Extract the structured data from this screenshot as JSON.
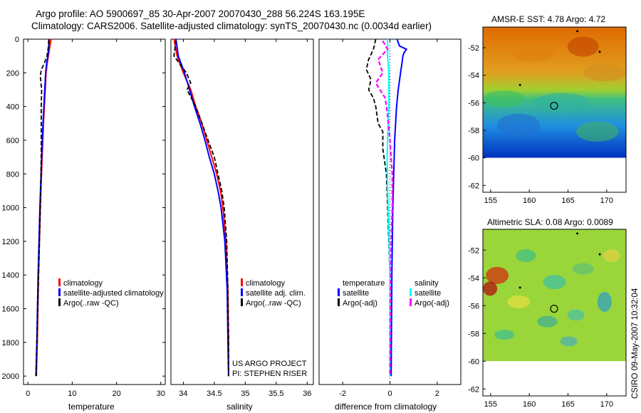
{
  "title": {
    "line1": "Argo profile: AO 5900697_85 30-Apr-2007 20070430_288 56.224S 163.195E",
    "line2": "Climatology: CARS2006. Satellite-adjusted climatology: synTS_20070430.nc (0.0034d earlier)"
  },
  "colors": {
    "climatology": "#ff0000",
    "satellite": "#0000ff",
    "argo": "#000000",
    "sat_diff_sal": "#00ffff",
    "argo_diff_sal": "#ff00ff"
  },
  "chart_data": [
    {
      "type": "line",
      "title": "",
      "xlabel": "temperature",
      "ylabel": "",
      "xlim": [
        -1,
        31
      ],
      "ylim": [
        2050,
        0
      ],
      "xticks": [
        0,
        10,
        20,
        30
      ],
      "yticks": [
        0,
        200,
        400,
        600,
        800,
        1000,
        1200,
        1400,
        1600,
        1800,
        2000
      ],
      "legend": [
        "climatology",
        "satellite-adjusted climatology",
        "Argo(..raw -QC)"
      ],
      "series": [
        {
          "name": "climatology",
          "depth": [
            0,
            50,
            100,
            150,
            200,
            300,
            400,
            500,
            700,
            1000,
            1400,
            1800,
            2000
          ],
          "values": [
            5.2,
            4.9,
            4.6,
            4.3,
            4.1,
            3.9,
            3.7,
            3.5,
            3.2,
            2.8,
            2.4,
            2.1,
            1.9
          ]
        },
        {
          "name": "satellite-adjusted climatology",
          "depth": [
            0,
            50,
            100,
            150,
            200,
            300,
            400,
            500,
            700,
            1000,
            1400,
            1800,
            2000
          ],
          "values": [
            4.8,
            4.7,
            4.5,
            4.2,
            4.0,
            3.8,
            3.6,
            3.4,
            3.1,
            2.7,
            2.3,
            2.0,
            1.8
          ]
        },
        {
          "name": "Argo(..raw -QC)",
          "depth": [
            5,
            50,
            100,
            150,
            180,
            220,
            300,
            400,
            500,
            700,
            1000,
            1400,
            1800,
            2000
          ],
          "values": [
            4.7,
            4.6,
            4.3,
            3.6,
            3.0,
            2.8,
            3.1,
            3.0,
            3.0,
            3.0,
            2.8,
            2.4,
            2.0,
            1.9
          ]
        }
      ]
    },
    {
      "type": "line",
      "title": "",
      "xlabel": "salinity",
      "ylabel": "",
      "xlim": [
        33.8,
        36.1
      ],
      "ylim": [
        2050,
        0
      ],
      "xticks": [
        34,
        34.5,
        35,
        35.5,
        36
      ],
      "yticks": [],
      "legend": [
        "climatology",
        "satellite adj. clim.",
        "Argo(..raw -QC)"
      ],
      "series": [
        {
          "name": "climatology",
          "depth": [
            0,
            100,
            200,
            300,
            400,
            500,
            600,
            700,
            800,
            900,
            1000,
            1200,
            1500,
            1800,
            2000
          ],
          "values": [
            33.85,
            33.9,
            34.0,
            34.12,
            34.2,
            34.3,
            34.38,
            34.46,
            34.54,
            34.6,
            34.64,
            34.69,
            34.72,
            34.73,
            34.73
          ]
        },
        {
          "name": "satellite adj. clim.",
          "depth": [
            0,
            100,
            200,
            300,
            400,
            500,
            600,
            700,
            800,
            900,
            1000,
            1200,
            1500,
            1800,
            2000
          ],
          "values": [
            33.88,
            33.92,
            34.02,
            34.1,
            34.18,
            34.27,
            34.35,
            34.42,
            34.5,
            34.56,
            34.61,
            34.67,
            34.71,
            34.72,
            34.73
          ]
        },
        {
          "name": "Argo(..raw -QC)",
          "depth": [
            5,
            100,
            150,
            200,
            260,
            300,
            400,
            500,
            600,
            700,
            800,
            900,
            1000,
            1200,
            1500,
            1800,
            2000
          ],
          "values": [
            33.88,
            33.85,
            33.95,
            34.05,
            34.12,
            34.06,
            34.2,
            34.3,
            34.4,
            34.5,
            34.56,
            34.62,
            34.66,
            34.7,
            34.72,
            34.73,
            34.73
          ]
        }
      ],
      "annotations": [
        "US ARGO PROJECT",
        "PI: STEPHEN RISER"
      ]
    },
    {
      "type": "line",
      "title": "",
      "xlabel": "difference from climatology",
      "ylabel": "",
      "xlim": [
        -3,
        3
      ],
      "ylim": [
        2050,
        0
      ],
      "xticks": [
        -2,
        0,
        2
      ],
      "yticks": [],
      "legend_temperature": [
        "temperature",
        "satellite",
        "Argo(-adj)"
      ],
      "legend_salinity": [
        "salinity",
        "satellite",
        "Argo(-adj)"
      ],
      "series": [
        {
          "name": "temperature satellite",
          "depth": [
            0,
            40,
            60,
            80,
            100,
            150,
            200,
            300,
            400,
            600,
            1000,
            1400,
            2000
          ],
          "values": [
            0.3,
            0.4,
            0.7,
            0.6,
            0.55,
            0.5,
            0.45,
            0.35,
            0.28,
            0.2,
            0.12,
            0.08,
            0.05
          ]
        },
        {
          "name": "temperature Argo(-adj)",
          "depth": [
            0,
            60,
            120,
            180,
            240,
            300,
            350,
            400,
            500,
            550,
            650,
            800,
            1000,
            1400,
            2000
          ],
          "values": [
            -0.6,
            -0.7,
            -0.9,
            -1.0,
            -0.8,
            -0.9,
            -0.7,
            -0.6,
            -0.5,
            -0.3,
            -0.3,
            -0.15,
            -0.1,
            0.0,
            0.0
          ]
        },
        {
          "name": "salinity satellite",
          "depth": [
            0,
            100,
            200,
            400,
            600,
            700,
            900,
            1100,
            1400,
            2000
          ],
          "values": [
            -0.1,
            -0.1,
            -0.05,
            -0.05,
            -0.1,
            -0.12,
            -0.1,
            -0.05,
            0.0,
            0.0
          ]
        },
        {
          "name": "salinity Argo(-adj)",
          "depth": [
            10,
            60,
            120,
            200,
            260,
            350,
            450,
            600,
            800,
            1000,
            1200,
            1500,
            2000
          ],
          "values": [
            -0.3,
            -0.1,
            -0.5,
            -0.3,
            -0.6,
            -0.2,
            -0.1,
            0.0,
            0.1,
            0.1,
            0.05,
            0.02,
            0.0
          ]
        }
      ]
    },
    {
      "type": "heatmap",
      "title": "AMSR-E SST: 4.78 Argo: 4.72",
      "xlim": [
        154,
        172.5
      ],
      "ylim": [
        -62.5,
        -50.5
      ],
      "xticks": [
        155,
        160,
        165,
        170
      ],
      "yticks": [
        -52,
        -54,
        -56,
        -58,
        -60,
        -62
      ],
      "profile_location": [
        163.2,
        -56.22
      ]
    },
    {
      "type": "heatmap",
      "title": "Altimetric SLA: 0.08 Argo: 0.0089",
      "xlim": [
        154,
        172.5
      ],
      "ylim": [
        -62.5,
        -50.5
      ],
      "xticks": [
        155,
        160,
        165,
        170
      ],
      "yticks": [
        -52,
        -54,
        -56,
        -58,
        -60,
        -62
      ],
      "profile_location": [
        163.2,
        -56.22
      ]
    }
  ],
  "credit": "CSIRO 09-May-2007 10:32:04"
}
